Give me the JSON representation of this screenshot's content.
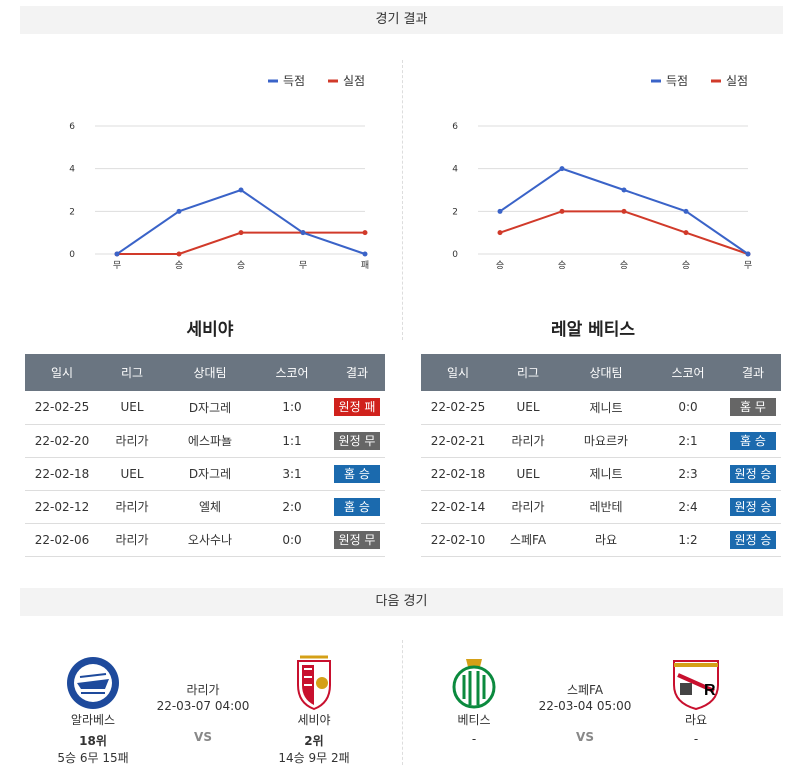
{
  "results_section": {
    "title": "경기 결과"
  },
  "next_section": {
    "title": "다음 경기"
  },
  "legend": {
    "scored": "득점",
    "conceded": "실점"
  },
  "colors": {
    "scored": "#3a63c8",
    "conceded": "#d13a2a",
    "win": "#1b6aae",
    "draw": "#666666",
    "loss": "#d0211c",
    "header": "#6a7581"
  },
  "chart_data": [
    {
      "type": "line",
      "categories": [
        "무",
        "승",
        "승",
        "무",
        "패"
      ],
      "ylim": [
        0,
        6
      ],
      "yticks": [
        0,
        2,
        4,
        6
      ],
      "series": [
        {
          "name": "득점",
          "values": [
            0,
            2,
            3,
            1,
            0
          ]
        },
        {
          "name": "실점",
          "values": [
            0,
            0,
            1,
            1,
            1
          ]
        }
      ]
    },
    {
      "type": "line",
      "categories": [
        "승",
        "승",
        "승",
        "승",
        "무"
      ],
      "ylim": [
        0,
        6
      ],
      "yticks": [
        0,
        2,
        4,
        6
      ],
      "series": [
        {
          "name": "득점",
          "values": [
            2,
            4,
            3,
            2,
            0
          ]
        },
        {
          "name": "실점",
          "values": [
            1,
            2,
            2,
            1,
            0
          ]
        }
      ]
    }
  ],
  "teams": [
    {
      "name": "세비야",
      "headers": [
        "일시",
        "리그",
        "상대팀",
        "스코어",
        "결과"
      ],
      "rows": [
        {
          "date": "22-02-25",
          "league": "UEL",
          "opponent": "D자그레",
          "score": "1:0",
          "result": "원정 패",
          "type": "loss"
        },
        {
          "date": "22-02-20",
          "league": "라리가",
          "opponent": "에스파뇰",
          "score": "1:1",
          "result": "원정 무",
          "type": "draw"
        },
        {
          "date": "22-02-18",
          "league": "UEL",
          "opponent": "D자그레",
          "score": "3:1",
          "result": "홈 승",
          "type": "win"
        },
        {
          "date": "22-02-12",
          "league": "라리가",
          "opponent": "엘체",
          "score": "2:0",
          "result": "홈 승",
          "type": "win"
        },
        {
          "date": "22-02-06",
          "league": "라리가",
          "opponent": "오사수나",
          "score": "0:0",
          "result": "원정 무",
          "type": "draw"
        }
      ]
    },
    {
      "name": "레알 베티스",
      "headers": [
        "일시",
        "리그",
        "상대팀",
        "스코어",
        "결과"
      ],
      "rows": [
        {
          "date": "22-02-25",
          "league": "UEL",
          "opponent": "제니트",
          "score": "0:0",
          "result": "홈 무",
          "type": "draw"
        },
        {
          "date": "22-02-21",
          "league": "라리가",
          "opponent": "마요르카",
          "score": "2:1",
          "result": "홈 승",
          "type": "win"
        },
        {
          "date": "22-02-18",
          "league": "UEL",
          "opponent": "제니트",
          "score": "2:3",
          "result": "원정 승",
          "type": "win"
        },
        {
          "date": "22-02-14",
          "league": "라리가",
          "opponent": "레반테",
          "score": "2:4",
          "result": "원정 승",
          "type": "win"
        },
        {
          "date": "22-02-10",
          "league": "스페FA",
          "opponent": "라요",
          "score": "1:2",
          "result": "원정 승",
          "type": "win"
        }
      ]
    }
  ],
  "next_matches": [
    {
      "home": {
        "name": "알라베스",
        "rank": "18위",
        "record": "5승 6무 15패",
        "logo": "alaves-crest-icon"
      },
      "away": {
        "name": "세비야",
        "rank": "2위",
        "record": "14승 9무 2패",
        "logo": "sevilla-crest-icon"
      },
      "league": "라리가",
      "datetime": "22-03-07 04:00",
      "vs": "VS"
    },
    {
      "home": {
        "name": "베티스",
        "rank": "-",
        "record": "",
        "logo": "betis-crest-icon"
      },
      "away": {
        "name": "라요",
        "rank": "-",
        "record": "",
        "logo": "rayo-crest-icon"
      },
      "league": "스페FA",
      "datetime": "22-03-04 05:00",
      "vs": "VS"
    }
  ]
}
